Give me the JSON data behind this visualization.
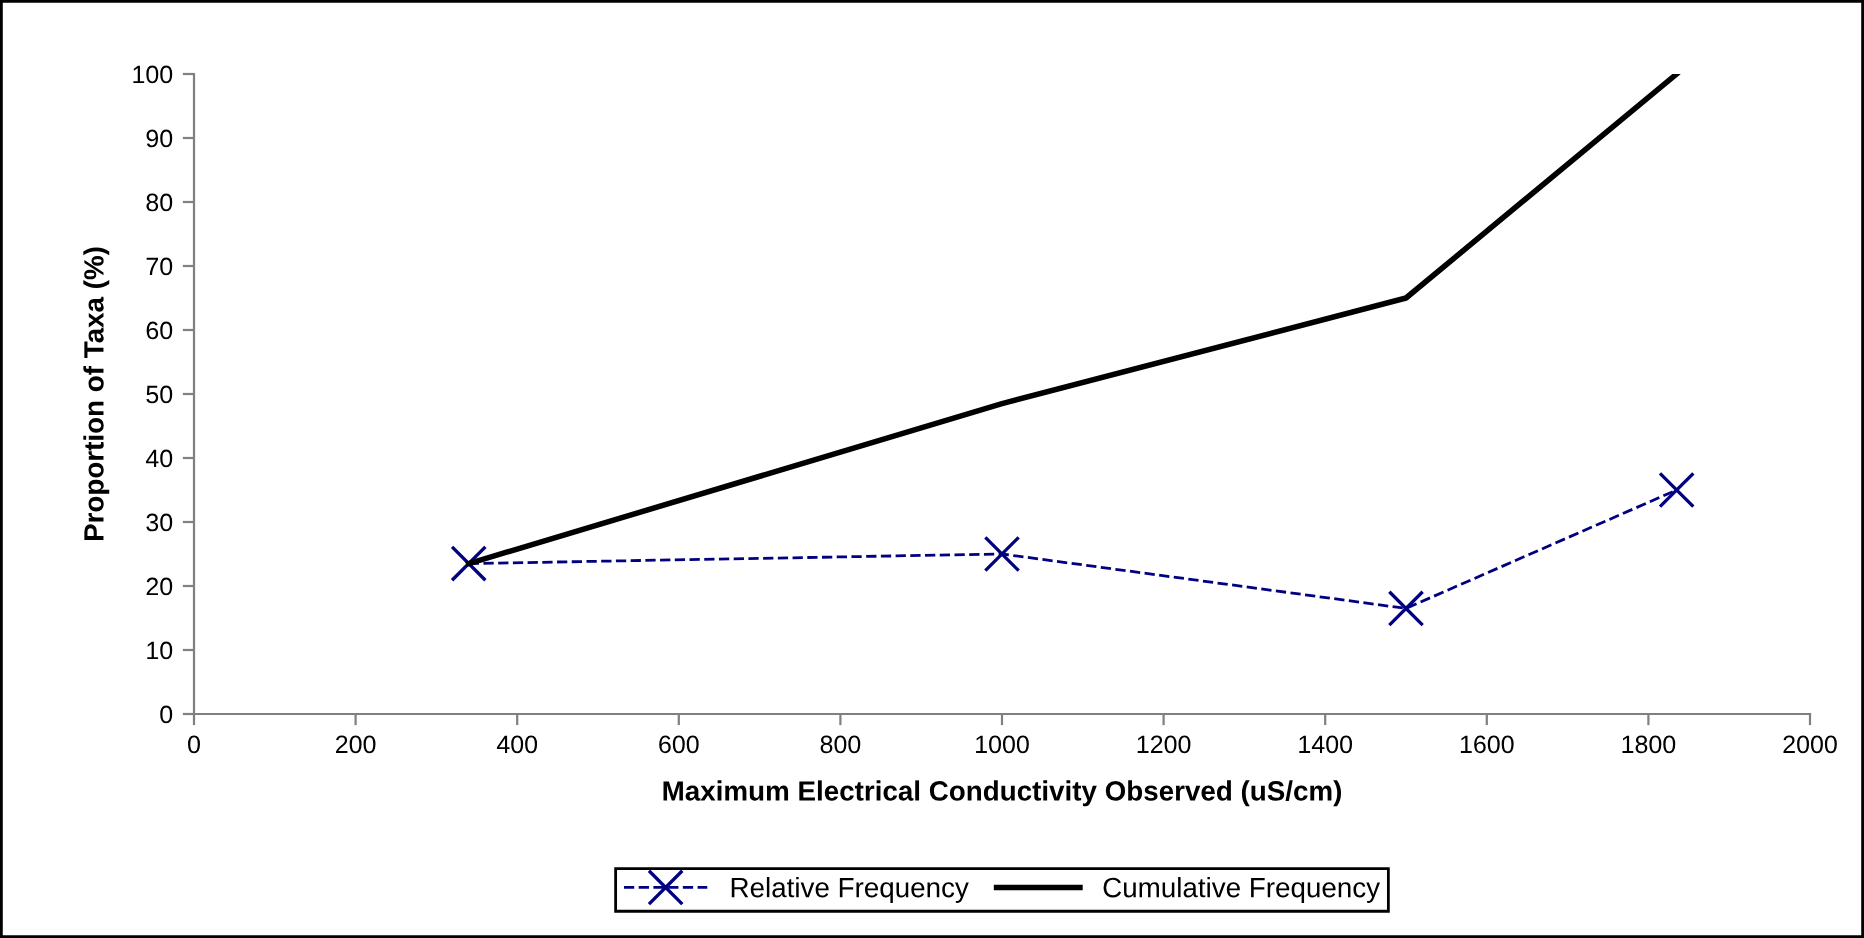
{
  "chart_data": {
    "type": "line",
    "xlabel": "Maximum Electrical Conductivity Observed (uS/cm)",
    "ylabel": "Proportion of Taxa (%)",
    "x": [
      340,
      1000,
      1500,
      1835
    ],
    "series": [
      {
        "name": "Relative Frequency",
        "color": "#000080",
        "values": [
          23.5,
          25,
          16.5,
          35
        ],
        "marker": "cross",
        "line_style": "dashed"
      },
      {
        "name": "Cumulative Frequency",
        "color": "#000000",
        "values": [
          23.5,
          48.5,
          65,
          100
        ],
        "marker": "none",
        "line_style": "solid"
      }
    ],
    "xlim": [
      0,
      2000
    ],
    "xticks": [
      0,
      200,
      400,
      600,
      800,
      1000,
      1200,
      1400,
      1600,
      1800,
      2000
    ],
    "ylim": [
      0,
      100
    ],
    "yticks": [
      0,
      10,
      20,
      30,
      40,
      50,
      60,
      70,
      80,
      90,
      100
    ],
    "grid": false,
    "legend": "bottom"
  }
}
